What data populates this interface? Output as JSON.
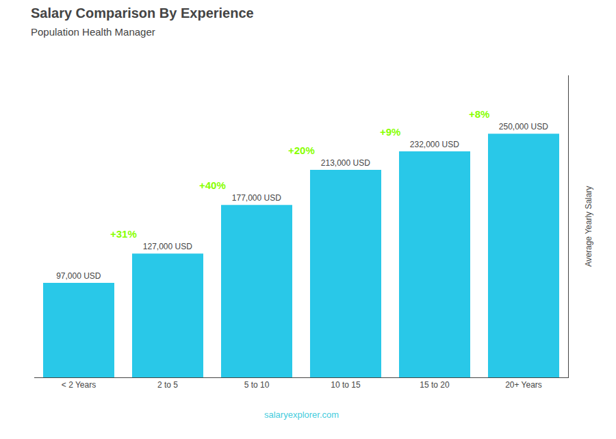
{
  "chart_data": {
    "type": "bar",
    "title": "Salary Comparison By Experience",
    "subtitle": "Population Health Manager",
    "categories": [
      "< 2 Years",
      "2 to 5",
      "5 to 10",
      "10 to 15",
      "15 to 20",
      "20+ Years"
    ],
    "values": [
      97000,
      127000,
      177000,
      213000,
      232000,
      250000
    ],
    "value_labels": [
      "97,000 USD",
      "127,000 USD",
      "177,000 USD",
      "213,000 USD",
      "232,000 USD",
      "250,000 USD"
    ],
    "data_labels": true,
    "color": "#29c8e8",
    "ylabel": "Average Yearly Salary",
    "ylim": [
      0,
      310000
    ],
    "tick_labels": "x",
    "grid": false,
    "annotations": [
      {
        "text": "+31%",
        "from": "< 2 Years",
        "to": "2 to 5",
        "color": "#88ff00"
      },
      {
        "text": "+40%",
        "from": "2 to 5",
        "to": "5 to 10",
        "color": "#88ff00"
      },
      {
        "text": "+20%",
        "from": "5 to 10",
        "to": "10 to 15",
        "color": "#88ff00"
      },
      {
        "text": "+9%",
        "from": "10 to 15",
        "to": "15 to 20",
        "color": "#88ff00"
      },
      {
        "text": "+8%",
        "from": "15 to 20",
        "to": "20+ Years",
        "color": "#88ff00"
      },
      {
        "text": "salaryexplorer.com",
        "color": "#44ccdd"
      }
    ]
  }
}
